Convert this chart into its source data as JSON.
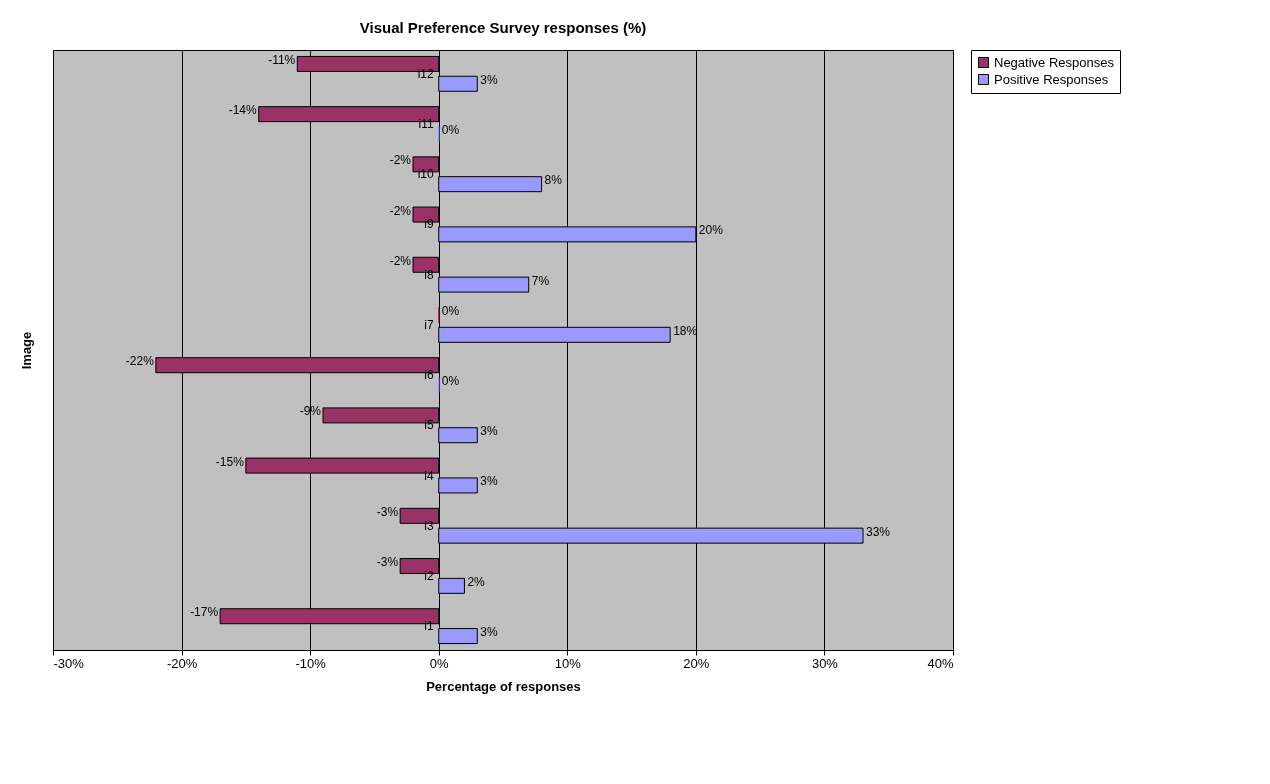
{
  "chart_data": {
    "type": "bar",
    "orientation": "horizontal",
    "title": "Visual Preference Survey responses (%)",
    "xlabel": "Percentage of responses",
    "ylabel": "Image",
    "categories": [
      "i12",
      "i11",
      "i10",
      "i9",
      "i8",
      "i7",
      "i6",
      "i5",
      "i4",
      "i3",
      "i2",
      "i1"
    ],
    "series": [
      {
        "name": "Negative Responses",
        "color": "#993366",
        "values": [
          -11,
          -14,
          -2,
          -2,
          -2,
          0,
          -22,
          -9,
          -15,
          -3,
          -3,
          -17
        ],
        "value_labels": [
          "-11%",
          "-14%",
          "-2%",
          "-2%",
          "-2%",
          "0%",
          "-22%",
          "-9%",
          "-15%",
          "-3%",
          "-3%",
          "-17%"
        ]
      },
      {
        "name": "Positive Responses",
        "color": "#9999ff",
        "values": [
          3,
          0,
          8,
          20,
          7,
          18,
          0,
          3,
          3,
          33,
          2,
          3
        ],
        "value_labels": [
          "3%",
          "0%",
          "8%",
          "20%",
          "7%",
          "18%",
          "0%",
          "3%",
          "3%",
          "33%",
          "2%",
          "3%"
        ]
      }
    ],
    "xlim": [
      -30,
      40
    ],
    "xticks": [
      {
        "value": -30,
        "label": "-30%"
      },
      {
        "value": -20,
        "label": "-20%"
      },
      {
        "value": -10,
        "label": "-10%"
      },
      {
        "value": 0,
        "label": "0%"
      },
      {
        "value": 10,
        "label": "10%"
      },
      {
        "value": 20,
        "label": "20%"
      },
      {
        "value": 30,
        "label": "30%"
      },
      {
        "value": 40,
        "label": "40%"
      }
    ],
    "grid": "x",
    "legend": "right"
  }
}
